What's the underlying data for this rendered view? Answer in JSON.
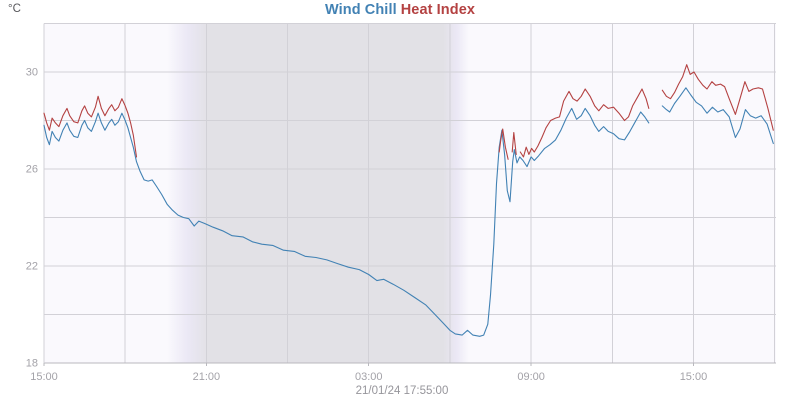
{
  "header": {
    "title_series1": "Wind Chill",
    "title_series2": "Heat Index",
    "unit_label": "°C"
  },
  "footer": {
    "timestamp": "21/01/24 17:55:00"
  },
  "colors": {
    "wind_chill": "#4282b4",
    "heat_index": "#b44242",
    "grid": "#d2d1d7",
    "axis": "#b9b8be",
    "tick_label": "#a3a2a8",
    "date_label": "#96959b",
    "unit_label": "#58585c",
    "day_bg": "#faf9fd",
    "night_bg": "#e2e1e6",
    "twilight_edge": "#ebe8f5",
    "outer_bg": "#ffffff"
  },
  "chart_data": {
    "type": "line",
    "title": "Wind Chill Heat Index",
    "ylabel": "°C",
    "footer_label": "21/01/24 17:55:00",
    "legend_position": "title",
    "grid": true,
    "x_axis": {
      "description": "time, hours since 15:00 on day 1; plot spans ~27 hours ending 21/01/24 17:55",
      "domain_t": [
        0,
        27.05
      ],
      "major_ticks": [
        {
          "t": 0,
          "label": "15:00"
        },
        {
          "t": 6,
          "label": "21:00"
        },
        {
          "t": 12,
          "label": "03:00"
        },
        {
          "t": 18,
          "label": "09:00"
        },
        {
          "t": 24,
          "label": "15:00"
        }
      ],
      "minor_ticks_t": [
        3,
        9,
        15,
        21,
        27
      ]
    },
    "y_axis": {
      "domain": [
        18,
        32
      ],
      "major_ticks": [
        18,
        22,
        26,
        30
      ],
      "minor_ticks": [
        20,
        24,
        28
      ]
    },
    "night_band": {
      "fade_in_start_t": 4.55,
      "edge_in_t": 5.3,
      "solid_start_t": 6.05,
      "solid_end_t": 14.75,
      "edge_out_t": 15.25,
      "fade_out_end_t": 15.7
    },
    "series": [
      {
        "name": "Wind Chill",
        "color_key": "wind_chill",
        "points": [
          [
            0,
            27.8
          ],
          [
            0.1,
            27.3
          ],
          [
            0.2,
            27.0
          ],
          [
            0.3,
            27.55
          ],
          [
            0.42,
            27.3
          ],
          [
            0.55,
            27.15
          ],
          [
            0.7,
            27.6
          ],
          [
            0.85,
            27.9
          ],
          [
            0.95,
            27.6
          ],
          [
            1.1,
            27.35
          ],
          [
            1.25,
            27.3
          ],
          [
            1.4,
            27.8
          ],
          [
            1.5,
            28.0
          ],
          [
            1.62,
            27.7
          ],
          [
            1.75,
            27.55
          ],
          [
            1.9,
            27.95
          ],
          [
            2.0,
            28.3
          ],
          [
            2.12,
            27.9
          ],
          [
            2.25,
            27.6
          ],
          [
            2.4,
            27.9
          ],
          [
            2.5,
            28.05
          ],
          [
            2.62,
            27.8
          ],
          [
            2.75,
            27.95
          ],
          [
            2.88,
            28.3
          ],
          [
            3.0,
            28.0
          ],
          [
            3.1,
            27.7
          ],
          [
            3.2,
            27.3
          ],
          [
            3.3,
            26.9
          ],
          [
            3.42,
            26.3
          ],
          [
            3.55,
            25.9
          ],
          [
            3.7,
            25.55
          ],
          [
            3.85,
            25.5
          ],
          [
            4.0,
            25.55
          ],
          [
            4.15,
            25.3
          ],
          [
            4.35,
            24.95
          ],
          [
            4.55,
            24.55
          ],
          [
            4.75,
            24.3
          ],
          [
            4.95,
            24.1
          ],
          [
            5.15,
            24.0
          ],
          [
            5.35,
            23.95
          ],
          [
            5.55,
            23.65
          ],
          [
            5.72,
            23.85
          ],
          [
            5.95,
            23.75
          ],
          [
            6.25,
            23.6
          ],
          [
            6.6,
            23.45
          ],
          [
            6.95,
            23.25
          ],
          [
            7.35,
            23.2
          ],
          [
            7.7,
            23.0
          ],
          [
            8.05,
            22.9
          ],
          [
            8.45,
            22.85
          ],
          [
            8.85,
            22.65
          ],
          [
            9.25,
            22.6
          ],
          [
            9.65,
            22.4
          ],
          [
            10.05,
            22.35
          ],
          [
            10.45,
            22.25
          ],
          [
            10.85,
            22.1
          ],
          [
            11.25,
            21.95
          ],
          [
            11.65,
            21.85
          ],
          [
            12.0,
            21.65
          ],
          [
            12.3,
            21.4
          ],
          [
            12.55,
            21.45
          ],
          [
            12.9,
            21.25
          ],
          [
            13.3,
            21.0
          ],
          [
            13.7,
            20.7
          ],
          [
            14.1,
            20.4
          ],
          [
            14.45,
            20.0
          ],
          [
            14.75,
            19.65
          ],
          [
            15.0,
            19.35
          ],
          [
            15.2,
            19.2
          ],
          [
            15.45,
            19.15
          ],
          [
            15.65,
            19.35
          ],
          [
            15.85,
            19.15
          ],
          [
            16.1,
            19.1
          ],
          [
            16.25,
            19.15
          ],
          [
            16.4,
            19.6
          ],
          [
            16.5,
            20.8
          ],
          [
            16.62,
            22.9
          ],
          [
            16.72,
            25.4
          ],
          [
            16.82,
            26.9
          ],
          [
            16.92,
            27.6
          ],
          [
            17.02,
            26.6
          ],
          [
            17.12,
            25.1
          ],
          [
            17.22,
            24.65
          ],
          [
            17.32,
            26.3
          ],
          [
            17.38,
            26.8
          ],
          [
            17.48,
            26.25
          ],
          [
            17.58,
            26.5
          ],
          [
            17.7,
            26.35
          ],
          [
            17.85,
            26.1
          ],
          [
            18.0,
            26.5
          ],
          [
            18.12,
            26.35
          ],
          [
            18.28,
            26.55
          ],
          [
            18.5,
            26.85
          ],
          [
            18.7,
            27.0
          ],
          [
            18.9,
            27.2
          ],
          [
            19.1,
            27.6
          ],
          [
            19.3,
            28.1
          ],
          [
            19.5,
            28.5
          ],
          [
            19.68,
            28.05
          ],
          [
            19.85,
            28.2
          ],
          [
            20.0,
            28.5
          ],
          [
            20.18,
            28.2
          ],
          [
            20.35,
            27.8
          ],
          [
            20.5,
            27.55
          ],
          [
            20.68,
            27.75
          ],
          [
            20.85,
            27.55
          ],
          [
            21.05,
            27.45
          ],
          [
            21.25,
            27.25
          ],
          [
            21.45,
            27.2
          ],
          [
            21.65,
            27.55
          ],
          [
            21.85,
            27.95
          ],
          [
            22.05,
            28.35
          ],
          [
            22.2,
            28.15
          ],
          [
            22.35,
            27.9
          ],
          null,
          [
            22.85,
            28.6
          ],
          [
            23.0,
            28.45
          ],
          [
            23.12,
            28.35
          ],
          [
            23.3,
            28.7
          ],
          [
            23.5,
            29.0
          ],
          [
            23.72,
            29.35
          ],
          [
            23.9,
            29.05
          ],
          [
            24.1,
            28.75
          ],
          [
            24.3,
            28.6
          ],
          [
            24.5,
            28.3
          ],
          [
            24.7,
            28.55
          ],
          [
            24.9,
            28.35
          ],
          [
            25.1,
            28.45
          ],
          [
            25.32,
            28.15
          ],
          [
            25.55,
            27.3
          ],
          [
            25.72,
            27.65
          ],
          [
            25.92,
            28.45
          ],
          [
            26.1,
            28.2
          ],
          [
            26.3,
            28.1
          ],
          [
            26.5,
            28.2
          ],
          [
            26.72,
            27.85
          ],
          [
            26.95,
            27.05
          ]
        ]
      },
      {
        "name": "Heat Index",
        "color_key": "heat_index",
        "points": [
          [
            0,
            28.3
          ],
          [
            0.1,
            27.9
          ],
          [
            0.2,
            27.6
          ],
          [
            0.3,
            28.1
          ],
          [
            0.42,
            27.9
          ],
          [
            0.55,
            27.75
          ],
          [
            0.7,
            28.2
          ],
          [
            0.85,
            28.5
          ],
          [
            0.95,
            28.2
          ],
          [
            1.1,
            27.95
          ],
          [
            1.25,
            27.9
          ],
          [
            1.4,
            28.4
          ],
          [
            1.5,
            28.6
          ],
          [
            1.62,
            28.3
          ],
          [
            1.75,
            28.15
          ],
          [
            1.9,
            28.55
          ],
          [
            2.0,
            29.0
          ],
          [
            2.12,
            28.5
          ],
          [
            2.25,
            28.2
          ],
          [
            2.4,
            28.5
          ],
          [
            2.5,
            28.65
          ],
          [
            2.62,
            28.4
          ],
          [
            2.75,
            28.55
          ],
          [
            2.88,
            28.9
          ],
          [
            3.0,
            28.6
          ],
          [
            3.1,
            28.3
          ],
          [
            3.2,
            27.9
          ],
          [
            3.3,
            27.4
          ],
          [
            3.42,
            26.5
          ],
          null,
          [
            16.82,
            26.7
          ],
          [
            16.88,
            27.2
          ],
          [
            16.95,
            27.65
          ],
          [
            17.05,
            26.9
          ],
          [
            17.15,
            26.4
          ],
          null,
          [
            17.3,
            26.7
          ],
          [
            17.36,
            27.5
          ],
          [
            17.45,
            26.6
          ],
          null,
          [
            17.6,
            26.7
          ],
          [
            17.72,
            26.5
          ],
          [
            17.82,
            26.9
          ],
          [
            17.92,
            26.6
          ],
          [
            18.02,
            26.85
          ],
          [
            18.12,
            26.7
          ],
          [
            18.25,
            26.95
          ],
          [
            18.4,
            27.3
          ],
          [
            18.55,
            27.7
          ],
          [
            18.72,
            28.0
          ],
          [
            18.9,
            28.1
          ],
          [
            19.05,
            28.15
          ],
          [
            19.2,
            28.8
          ],
          [
            19.4,
            29.2
          ],
          [
            19.55,
            28.9
          ],
          [
            19.7,
            28.8
          ],
          [
            19.85,
            29.0
          ],
          [
            20.0,
            29.3
          ],
          [
            20.18,
            29.0
          ],
          [
            20.35,
            28.6
          ],
          [
            20.5,
            28.4
          ],
          [
            20.68,
            28.65
          ],
          [
            20.85,
            28.5
          ],
          [
            21.05,
            28.55
          ],
          [
            21.25,
            28.3
          ],
          [
            21.45,
            28.0
          ],
          [
            21.6,
            28.15
          ],
          [
            21.75,
            28.6
          ],
          [
            21.95,
            29.0
          ],
          [
            22.1,
            29.3
          ],
          [
            22.25,
            28.9
          ],
          [
            22.35,
            28.5
          ],
          null,
          [
            22.85,
            29.25
          ],
          [
            23.0,
            29.0
          ],
          [
            23.15,
            28.9
          ],
          [
            23.3,
            29.15
          ],
          [
            23.45,
            29.5
          ],
          [
            23.6,
            29.8
          ],
          [
            23.75,
            30.3
          ],
          [
            23.88,
            29.9
          ],
          [
            24.02,
            30.0
          ],
          [
            24.18,
            29.7
          ],
          [
            24.35,
            29.45
          ],
          [
            24.5,
            29.3
          ],
          [
            24.68,
            29.6
          ],
          [
            24.82,
            29.45
          ],
          [
            25.0,
            29.5
          ],
          [
            25.15,
            29.4
          ],
          [
            25.32,
            28.9
          ],
          [
            25.55,
            28.25
          ],
          [
            25.72,
            28.9
          ],
          [
            25.9,
            29.6
          ],
          [
            26.05,
            29.2
          ],
          [
            26.2,
            29.3
          ],
          [
            26.4,
            29.35
          ],
          [
            26.55,
            29.3
          ],
          [
            26.75,
            28.5
          ],
          [
            26.95,
            27.6
          ]
        ]
      }
    ]
  }
}
